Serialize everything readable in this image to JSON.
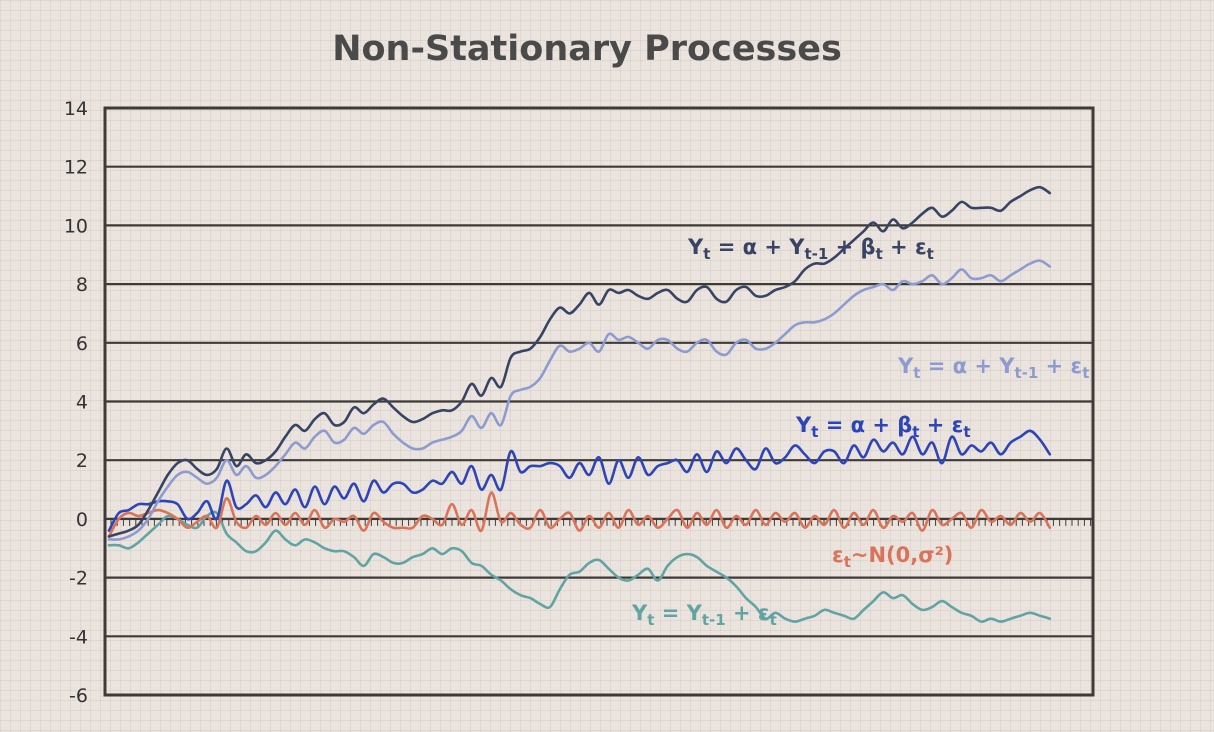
{
  "chart_data": {
    "type": "line",
    "title": "Non-Stationary Processes",
    "xlabel": "",
    "ylabel": "",
    "ylim": [
      -6,
      14
    ],
    "yticks": [
      -6,
      -4,
      -2,
      0,
      2,
      4,
      6,
      8,
      10,
      12,
      14
    ],
    "grid": "horizontal",
    "legend": "inline labels",
    "n_points": 101,
    "series": [
      {
        "name": "Y_t = α + Y_t-1 + β_t + ε_t",
        "label_parts": [
          [
            "Y",
            ""
          ],
          [
            "t",
            "sub"
          ],
          [
            " = α + Y",
            ""
          ],
          [
            "t-1",
            "sub"
          ],
          [
            " + β",
            ""
          ],
          [
            "t",
            "sub"
          ],
          [
            " + ε",
            ""
          ],
          [
            "t",
            "sub"
          ]
        ],
        "color": "#374463",
        "values": [
          -0.6,
          -0.5,
          -0.4,
          -0.2,
          0.3,
          0.9,
          1.5,
          1.9,
          2.0,
          1.7,
          1.5,
          1.7,
          2.4,
          1.8,
          2.2,
          1.9,
          2.0,
          2.3,
          2.8,
          3.2,
          3.0,
          3.4,
          3.6,
          3.2,
          3.3,
          3.8,
          3.6,
          3.9,
          4.1,
          3.8,
          3.5,
          3.3,
          3.4,
          3.6,
          3.7,
          3.7,
          4.0,
          4.6,
          4.2,
          4.8,
          4.5,
          5.5,
          5.7,
          5.8,
          6.2,
          6.8,
          7.2,
          7.0,
          7.3,
          7.7,
          7.3,
          7.8,
          7.7,
          7.8,
          7.6,
          7.5,
          7.7,
          7.8,
          7.5,
          7.4,
          7.8,
          7.9,
          7.5,
          7.4,
          7.8,
          7.9,
          7.6,
          7.6,
          7.8,
          7.9,
          8.1,
          8.5,
          8.7,
          8.7,
          8.9,
          9.2,
          9.5,
          9.8,
          10.1,
          9.8,
          10.2,
          9.9,
          10.1,
          10.4,
          10.6,
          10.3,
          10.5,
          10.8,
          10.6,
          10.6,
          10.6,
          10.5,
          10.8,
          11.0,
          11.2,
          11.3,
          11.1
        ],
        "label_pos": [
          688,
          254
        ]
      },
      {
        "name": "Y_t = α + Y_t-1 + ε_t",
        "label_parts": [
          [
            "Y",
            ""
          ],
          [
            "t",
            "sub"
          ],
          [
            " = α + Y",
            ""
          ],
          [
            "t-1",
            "sub"
          ],
          [
            " + ε",
            ""
          ],
          [
            "t",
            "sub"
          ]
        ],
        "color": "#8d9bd0",
        "values": [
          -0.7,
          -0.7,
          -0.6,
          -0.4,
          0.0,
          0.6,
          1.1,
          1.5,
          1.6,
          1.4,
          1.2,
          1.4,
          2.0,
          1.5,
          1.8,
          1.4,
          1.5,
          1.8,
          2.2,
          2.6,
          2.4,
          2.8,
          3.0,
          2.6,
          2.7,
          3.1,
          2.9,
          3.2,
          3.3,
          2.9,
          2.6,
          2.4,
          2.4,
          2.6,
          2.7,
          2.8,
          3.0,
          3.5,
          3.1,
          3.6,
          3.2,
          4.2,
          4.4,
          4.5,
          4.8,
          5.4,
          5.9,
          5.7,
          5.8,
          6.0,
          5.7,
          6.3,
          6.1,
          6.2,
          6.0,
          5.8,
          6.1,
          6.1,
          5.8,
          5.7,
          6.0,
          6.1,
          5.7,
          5.6,
          6.0,
          6.1,
          5.8,
          5.8,
          6.0,
          6.3,
          6.6,
          6.7,
          6.7,
          6.8,
          7.0,
          7.3,
          7.6,
          7.8,
          7.9,
          8.0,
          7.8,
          8.1,
          8.0,
          8.1,
          8.3,
          8.0,
          8.2,
          8.5,
          8.2,
          8.2,
          8.3,
          8.1,
          8.3,
          8.5,
          8.7,
          8.8,
          8.6
        ],
        "label_pos": [
          898,
          373
        ]
      },
      {
        "name": "Y_t = α + β_t + ε_t",
        "label_parts": [
          [
            "Y",
            ""
          ],
          [
            "t",
            "sub"
          ],
          [
            " = α + β",
            ""
          ],
          [
            "t",
            "sub"
          ],
          [
            " + ε",
            ""
          ],
          [
            "t",
            "sub"
          ]
        ],
        "color": "#2d45b8",
        "values": [
          -0.4,
          0.2,
          0.3,
          0.5,
          0.5,
          0.6,
          0.6,
          0.5,
          0.0,
          0.2,
          0.6,
          0.0,
          1.3,
          0.4,
          0.5,
          0.8,
          0.4,
          0.9,
          0.5,
          1.0,
          0.4,
          1.1,
          0.5,
          1.1,
          0.7,
          1.2,
          0.6,
          1.3,
          0.9,
          1.2,
          1.2,
          0.9,
          1.0,
          1.3,
          1.2,
          1.6,
          1.2,
          1.8,
          1.0,
          1.5,
          1.0,
          2.3,
          1.6,
          1.8,
          1.8,
          1.9,
          1.8,
          1.4,
          1.9,
          1.5,
          2.1,
          1.2,
          2.0,
          1.4,
          2.1,
          1.5,
          1.8,
          1.9,
          2.0,
          1.6,
          2.2,
          1.6,
          2.3,
          1.9,
          2.4,
          2.0,
          1.7,
          2.4,
          1.9,
          2.1,
          2.5,
          2.2,
          1.9,
          2.3,
          2.3,
          1.9,
          2.5,
          2.1,
          2.7,
          2.3,
          2.6,
          2.2,
          2.8,
          2.2,
          2.6,
          1.9,
          2.8,
          2.2,
          2.5,
          2.3,
          2.6,
          2.2,
          2.6,
          2.8,
          3.0,
          2.7,
          2.2
        ],
        "label_pos": [
          796,
          432
        ]
      },
      {
        "name": "ε_t ~ N(0,σ²)",
        "label_parts": [
          [
            "ε",
            ""
          ],
          [
            "t",
            "sub"
          ],
          [
            "~N(0,σ²)",
            ""
          ]
        ],
        "color": "#d9745b",
        "values": [
          -0.6,
          0.0,
          0.2,
          0.1,
          0.2,
          0.3,
          0.2,
          0.0,
          -0.3,
          -0.1,
          0.1,
          -0.3,
          0.7,
          -0.1,
          -0.3,
          0.1,
          -0.2,
          0.2,
          -0.2,
          0.2,
          -0.2,
          0.3,
          -0.3,
          0.0,
          -0.1,
          0.1,
          -0.4,
          0.2,
          -0.1,
          -0.3,
          -0.3,
          -0.3,
          0.1,
          0.0,
          -0.2,
          0.5,
          -0.2,
          0.3,
          -0.4,
          0.9,
          -0.1,
          0.2,
          -0.2,
          -0.3,
          0.3,
          -0.3,
          0.0,
          0.2,
          -0.4,
          0.1,
          -0.3,
          0.2,
          -0.3,
          0.3,
          -0.2,
          0.1,
          -0.3,
          0.0,
          0.3,
          -0.3,
          0.2,
          -0.2,
          0.3,
          -0.3,
          0.1,
          -0.2,
          0.3,
          -0.2,
          0.2,
          -0.1,
          0.2,
          -0.3,
          0.1,
          -0.2,
          0.3,
          -0.3,
          0.2,
          -0.2,
          0.3,
          -0.3,
          0.1,
          -0.1,
          0.2,
          -0.4,
          0.3,
          -0.2,
          0.0,
          0.2,
          -0.3,
          0.3,
          -0.1,
          0.1,
          -0.2,
          0.2,
          -0.1,
          0.2,
          -0.3
        ],
        "label_pos": [
          832,
          562
        ]
      },
      {
        "name": "Y_t = Y_t-1 + ε_t",
        "label_parts": [
          [
            "Y",
            ""
          ],
          [
            "t",
            "sub"
          ],
          [
            " = Y",
            ""
          ],
          [
            "t-1",
            "sub"
          ],
          [
            " + ε",
            ""
          ],
          [
            "t",
            "sub"
          ]
        ],
        "color": "#62a3a3",
        "values": [
          -0.9,
          -0.9,
          -1.0,
          -0.8,
          -0.5,
          -0.2,
          0.1,
          0.0,
          -0.2,
          -0.3,
          0.1,
          0.2,
          -0.5,
          -0.8,
          -1.1,
          -1.1,
          -0.8,
          -0.4,
          -0.7,
          -0.9,
          -0.7,
          -0.8,
          -1.0,
          -1.1,
          -1.1,
          -1.3,
          -1.6,
          -1.2,
          -1.3,
          -1.5,
          -1.5,
          -1.3,
          -1.2,
          -1.0,
          -1.2,
          -1.0,
          -1.1,
          -1.5,
          -1.6,
          -1.9,
          -2.1,
          -2.4,
          -2.6,
          -2.7,
          -2.9,
          -3.0,
          -2.4,
          -1.9,
          -1.8,
          -1.5,
          -1.4,
          -1.7,
          -2.0,
          -2.1,
          -1.9,
          -1.7,
          -2.1,
          -1.6,
          -1.3,
          -1.2,
          -1.3,
          -1.6,
          -1.8,
          -2.0,
          -2.3,
          -2.7,
          -3.0,
          -3.4,
          -3.2,
          -3.4,
          -3.5,
          -3.4,
          -3.3,
          -3.1,
          -3.2,
          -3.3,
          -3.4,
          -3.1,
          -2.8,
          -2.5,
          -2.7,
          -2.6,
          -2.9,
          -3.1,
          -3.0,
          -2.8,
          -3.0,
          -3.2,
          -3.3,
          -3.5,
          -3.4,
          -3.5,
          -3.4,
          -3.3,
          -3.2,
          -3.3,
          -3.4
        ],
        "label_pos": [
          632,
          620
        ]
      }
    ]
  }
}
